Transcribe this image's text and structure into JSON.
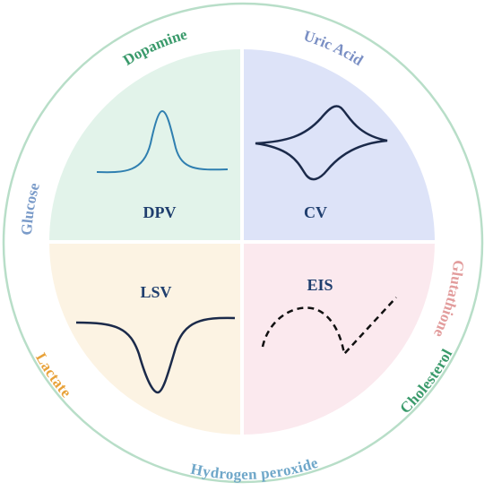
{
  "quadrants": [
    {
      "label": "DPV"
    },
    {
      "label": "CV"
    },
    {
      "label": "LSV"
    },
    {
      "label": "EIS"
    }
  ],
  "analytes": [
    "Dopamine",
    "Uric Acid",
    "Glutathione",
    "Cholesterol",
    "Hydrogen peroxide",
    "Lactate",
    "Glucose"
  ]
}
